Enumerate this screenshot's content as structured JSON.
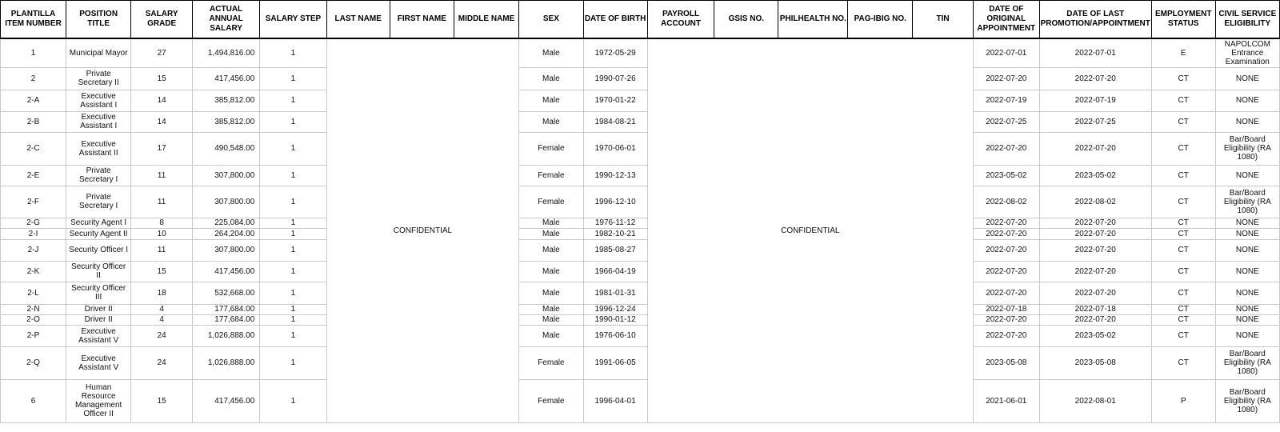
{
  "headers": [
    "PLANTILLA ITEM NUMBER",
    "POSITION TITLE",
    "SALARY GRADE",
    "ACTUAL ANNUAL SALARY",
    "SALARY STEP",
    "LAST NAME",
    "FIRST NAME",
    "MIDDLE NAME",
    "SEX",
    "DATE OF BIRTH",
    "PAYROLL ACCOUNT",
    "GSIS NO.",
    "PHILHEALTH NO.",
    "PAG-IBIG NO.",
    "TIN",
    "DATE OF ORIGINAL APPOINTMENT",
    "DATE OF LAST PROMOTION/APPOINTMENT",
    "EMPLOYMENT STATUS",
    "CIVIL SERVICE ELIGIBILITY"
  ],
  "confidential_label": "CONFIDENTIAL",
  "rows": [
    {
      "item": "1",
      "position": "Municipal Mayor",
      "grade": "27",
      "salary": "1,494,816.00",
      "step": "1",
      "sex": "Male",
      "dob": "1972-05-29",
      "orig": "2022-07-01",
      "last": "2022-07-01",
      "status": "E",
      "elig": "NAPOLCOM Entrance Examination"
    },
    {
      "item": "2",
      "position": "Private Secretary II",
      "grade": "15",
      "salary": "417,456.00",
      "step": "1",
      "sex": "Male",
      "dob": "1990-07-26",
      "orig": "2022-07-20",
      "last": "2022-07-20",
      "status": "CT",
      "elig": "NONE"
    },
    {
      "item": "2-A",
      "position": "Executive Assistant I",
      "grade": "14",
      "salary": "385,812.00",
      "step": "1",
      "sex": "Male",
      "dob": "1970-01-22",
      "orig": "2022-07-19",
      "last": "2022-07-19",
      "status": "CT",
      "elig": "NONE"
    },
    {
      "item": "2-B",
      "position": "Executive Assistant I",
      "grade": "14",
      "salary": "385,812.00",
      "step": "1",
      "sex": "Male",
      "dob": "1984-08-21",
      "orig": "2022-07-25",
      "last": "2022-07-25",
      "status": "CT",
      "elig": "NONE"
    },
    {
      "item": "2-C",
      "position": "Executive Assistant II",
      "grade": "17",
      "salary": "490,548.00",
      "step": "1",
      "sex": "Female",
      "dob": "1970-06-01",
      "orig": "2022-07-20",
      "last": "2022-07-20",
      "status": "CT",
      "elig": "Bar/Board Eligibility (RA 1080)"
    },
    {
      "item": "2-E",
      "position": "Private Secretary I",
      "grade": "11",
      "salary": "307,800.00",
      "step": "1",
      "sex": "Female",
      "dob": "1990-12-13",
      "orig": "2023-05-02",
      "last": "2023-05-02",
      "status": "CT",
      "elig": "NONE"
    },
    {
      "item": "2-F",
      "position": "Private Secretary I",
      "grade": "11",
      "salary": "307,800.00",
      "step": "1",
      "sex": "Female",
      "dob": "1996-12-10",
      "orig": "2022-08-02",
      "last": "2022-08-02",
      "status": "CT",
      "elig": "Bar/Board Eligibility (RA 1080)"
    },
    {
      "item": "2-G",
      "position": "Security Agent I",
      "grade": "8",
      "salary": "225,084.00",
      "step": "1",
      "sex": "Male",
      "dob": "1976-11-12",
      "orig": "2022-07-20",
      "last": "2022-07-20",
      "status": "CT",
      "elig": "NONE"
    },
    {
      "item": "2-I",
      "position": "Security Agent II",
      "grade": "10",
      "salary": "264,204.00",
      "step": "1",
      "sex": "Male",
      "dob": "1982-10-21",
      "orig": "2022-07-20",
      "last": "2022-07-20",
      "status": "CT",
      "elig": "NONE"
    },
    {
      "item": "2-J",
      "position": "Security Officer I",
      "grade": "11",
      "salary": "307,800.00",
      "step": "1",
      "sex": "Male",
      "dob": "1985-08-27",
      "orig": "2022-07-20",
      "last": "2022-07-20",
      "status": "CT",
      "elig": "NONE"
    },
    {
      "item": "2-K",
      "position": "Security Officer II",
      "grade": "15",
      "salary": "417,456.00",
      "step": "1",
      "sex": "Male",
      "dob": "1966-04-19",
      "orig": "2022-07-20",
      "last": "2022-07-20",
      "status": "CT",
      "elig": "NONE"
    },
    {
      "item": "2-L",
      "position": "Security Officer III",
      "grade": "18",
      "salary": "532,668.00",
      "step": "1",
      "sex": "Male",
      "dob": "1981-01-31",
      "orig": "2022-07-20",
      "last": "2022-07-20",
      "status": "CT",
      "elig": "NONE"
    },
    {
      "item": "2-N",
      "position": "Driver II",
      "grade": "4",
      "salary": "177,684.00",
      "step": "1",
      "sex": "Male",
      "dob": "1996-12-24",
      "orig": "2022-07-18",
      "last": "2022-07-18",
      "status": "CT",
      "elig": "NONE"
    },
    {
      "item": "2-O",
      "position": "Driver II",
      "grade": "4",
      "salary": "177,684.00",
      "step": "1",
      "sex": "Male",
      "dob": "1990-01-12",
      "orig": "2022-07-20",
      "last": "2022-07-20",
      "status": "CT",
      "elig": "NONE"
    },
    {
      "item": "2-P",
      "position": "Executive Assistant V",
      "grade": "24",
      "salary": "1,026,888.00",
      "step": "1",
      "sex": "Male",
      "dob": "1976-06-10",
      "orig": "2022-07-20",
      "last": "2023-05-02",
      "status": "CT",
      "elig": "NONE"
    },
    {
      "item": "2-Q",
      "position": "Executive Assistant V",
      "grade": "24",
      "salary": "1,026,888.00",
      "step": "1",
      "sex": "Female",
      "dob": "1991-06-05",
      "orig": "2023-05-08",
      "last": "2023-05-08",
      "status": "CT",
      "elig": "Bar/Board Eligibility (RA 1080)"
    },
    {
      "item": "6",
      "position": "Human Resource Management Officer II",
      "grade": "15",
      "salary": "417,456.00",
      "step": "1",
      "sex": "Female",
      "dob": "1996-04-01",
      "orig": "2021-06-01",
      "last": "2022-08-01",
      "status": "P",
      "elig": "Bar/Board Eligibility (RA 1080)"
    }
  ]
}
